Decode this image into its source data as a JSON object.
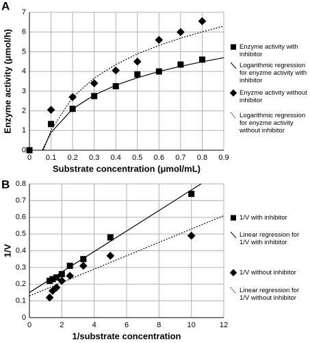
{
  "chart_data": [
    {
      "type": "scatter",
      "label": "A",
      "x_label": "Substrate concentration  (μmol/mL)",
      "y_label": "Enzyme activity (μmol/h)",
      "xlim": [
        0,
        0.9
      ],
      "xticks": [
        0,
        0.1,
        0.2,
        0.3,
        0.4,
        0.5,
        0.6,
        0.7,
        0.8,
        0.9
      ],
      "ylim": [
        0,
        7
      ],
      "yticks": [
        0,
        1,
        2,
        3,
        4,
        5,
        6,
        7
      ],
      "grid": true,
      "legend": "right",
      "series": [
        {
          "name": "Enzyme activity with inhibitor",
          "color": "#000000",
          "marker": "square",
          "line": "none",
          "x": [
            0,
            0.1,
            0.2,
            0.3,
            0.4,
            0.5,
            0.6,
            0.7,
            0.8
          ],
          "values": [
            0,
            1.33,
            2.1,
            2.75,
            3.25,
            3.85,
            4.0,
            4.35,
            4.6
          ]
        },
        {
          "name": "Logarithmic regression for enyzme activity with  inhibitor",
          "color": "#000000",
          "marker": "none",
          "line": "solid",
          "x": [
            0.06,
            0.1,
            0.2,
            0.3,
            0.4,
            0.5,
            0.6,
            0.7,
            0.8,
            0.9
          ],
          "values": [
            0,
            0.9,
            2.1,
            2.8,
            3.3,
            3.68,
            4.0,
            4.26,
            4.49,
            4.7
          ]
        },
        {
          "name": "Enyzme activity without inhibitor",
          "color": "#000000",
          "marker": "diamond",
          "line": "none",
          "x": [
            0.1,
            0.2,
            0.3,
            0.4,
            0.5,
            0.6,
            0.7,
            0.8
          ],
          "values": [
            2.05,
            2.7,
            3.4,
            4.05,
            4.5,
            5.6,
            6.0,
            6.55
          ]
        },
        {
          "name": "Logarithmic regression for enyzme activity without inhibitor",
          "color": "#000000",
          "marker": "none",
          "line": "dotted",
          "x": [
            0.065,
            0.1,
            0.2,
            0.3,
            0.4,
            0.5,
            0.6,
            0.7,
            0.8,
            0.9
          ],
          "values": [
            0,
            1.02,
            2.69,
            3.66,
            4.35,
            4.89,
            5.32,
            5.69,
            6.01,
            6.3
          ]
        }
      ]
    },
    {
      "type": "scatter",
      "label": "B",
      "x_label": "1/substrate concentration",
      "y_label": "1/V",
      "xlim": [
        0,
        12
      ],
      "xticks": [
        0,
        2,
        4,
        6,
        8,
        10,
        12
      ],
      "ylim": [
        0,
        0.8
      ],
      "yticks": [
        0,
        0.1,
        0.2,
        0.3,
        0.4,
        0.5,
        0.6,
        0.7,
        0.8
      ],
      "grid": true,
      "legend": "right",
      "series": [
        {
          "name": "1/V with inhibitor",
          "color": "#000000",
          "marker": "square",
          "line": "none",
          "x": [
            1.25,
            1.43,
            1.67,
            2,
            2.5,
            3.33,
            5,
            10
          ],
          "values": [
            0.22,
            0.23,
            0.24,
            0.26,
            0.31,
            0.35,
            0.48,
            0.74
          ]
        },
        {
          "name": "Linear regression for 1/V with inhibitor",
          "color": "#000000",
          "marker": "none",
          "line": "solid",
          "x": [
            0,
            10.6
          ],
          "values": [
            0.15,
            0.8
          ]
        },
        {
          "name": "1/V without inhibitor",
          "color": "#000000",
          "marker": "diamond",
          "line": "none",
          "x": [
            1.25,
            1.43,
            1.67,
            2,
            2.5,
            3.33,
            5,
            10
          ],
          "values": [
            0.12,
            0.16,
            0.18,
            0.22,
            0.25,
            0.31,
            0.37,
            0.49
          ]
        },
        {
          "name": "Linear regression for 1/V without inhibitor",
          "color": "#000000",
          "marker": "none",
          "line": "dotted",
          "x": [
            0,
            12
          ],
          "values": [
            0.13,
            0.61
          ]
        }
      ]
    }
  ]
}
